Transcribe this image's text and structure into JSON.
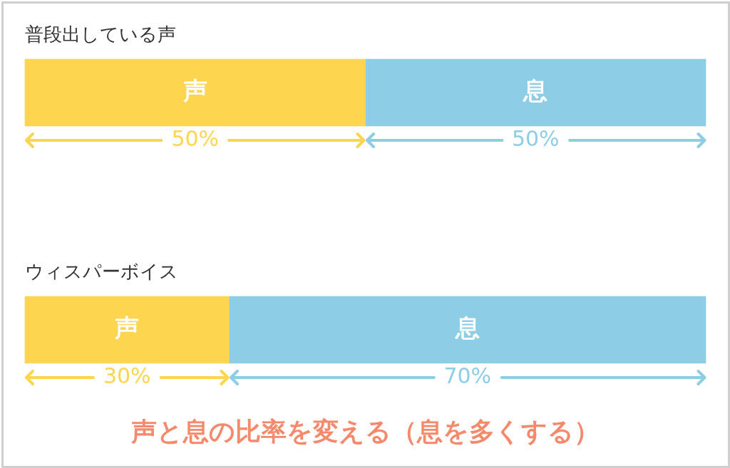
{
  "chart_data": {
    "type": "bar",
    "orientation": "horizontal",
    "stacked": true,
    "categories": [
      "普段出している声",
      "ウィスパーボイス"
    ],
    "series": [
      {
        "name": "声",
        "color": "#fdd54f",
        "values": [
          50,
          30
        ],
        "value_labels": [
          "50%",
          "30%"
        ]
      },
      {
        "name": "息",
        "color": "#8ecde6",
        "values": [
          50,
          70
        ],
        "value_labels": [
          "50%",
          "70%"
        ]
      }
    ],
    "tick_labels": "y",
    "annotations": [
      "声と息の比率を変える（息を多くする）"
    ]
  }
}
